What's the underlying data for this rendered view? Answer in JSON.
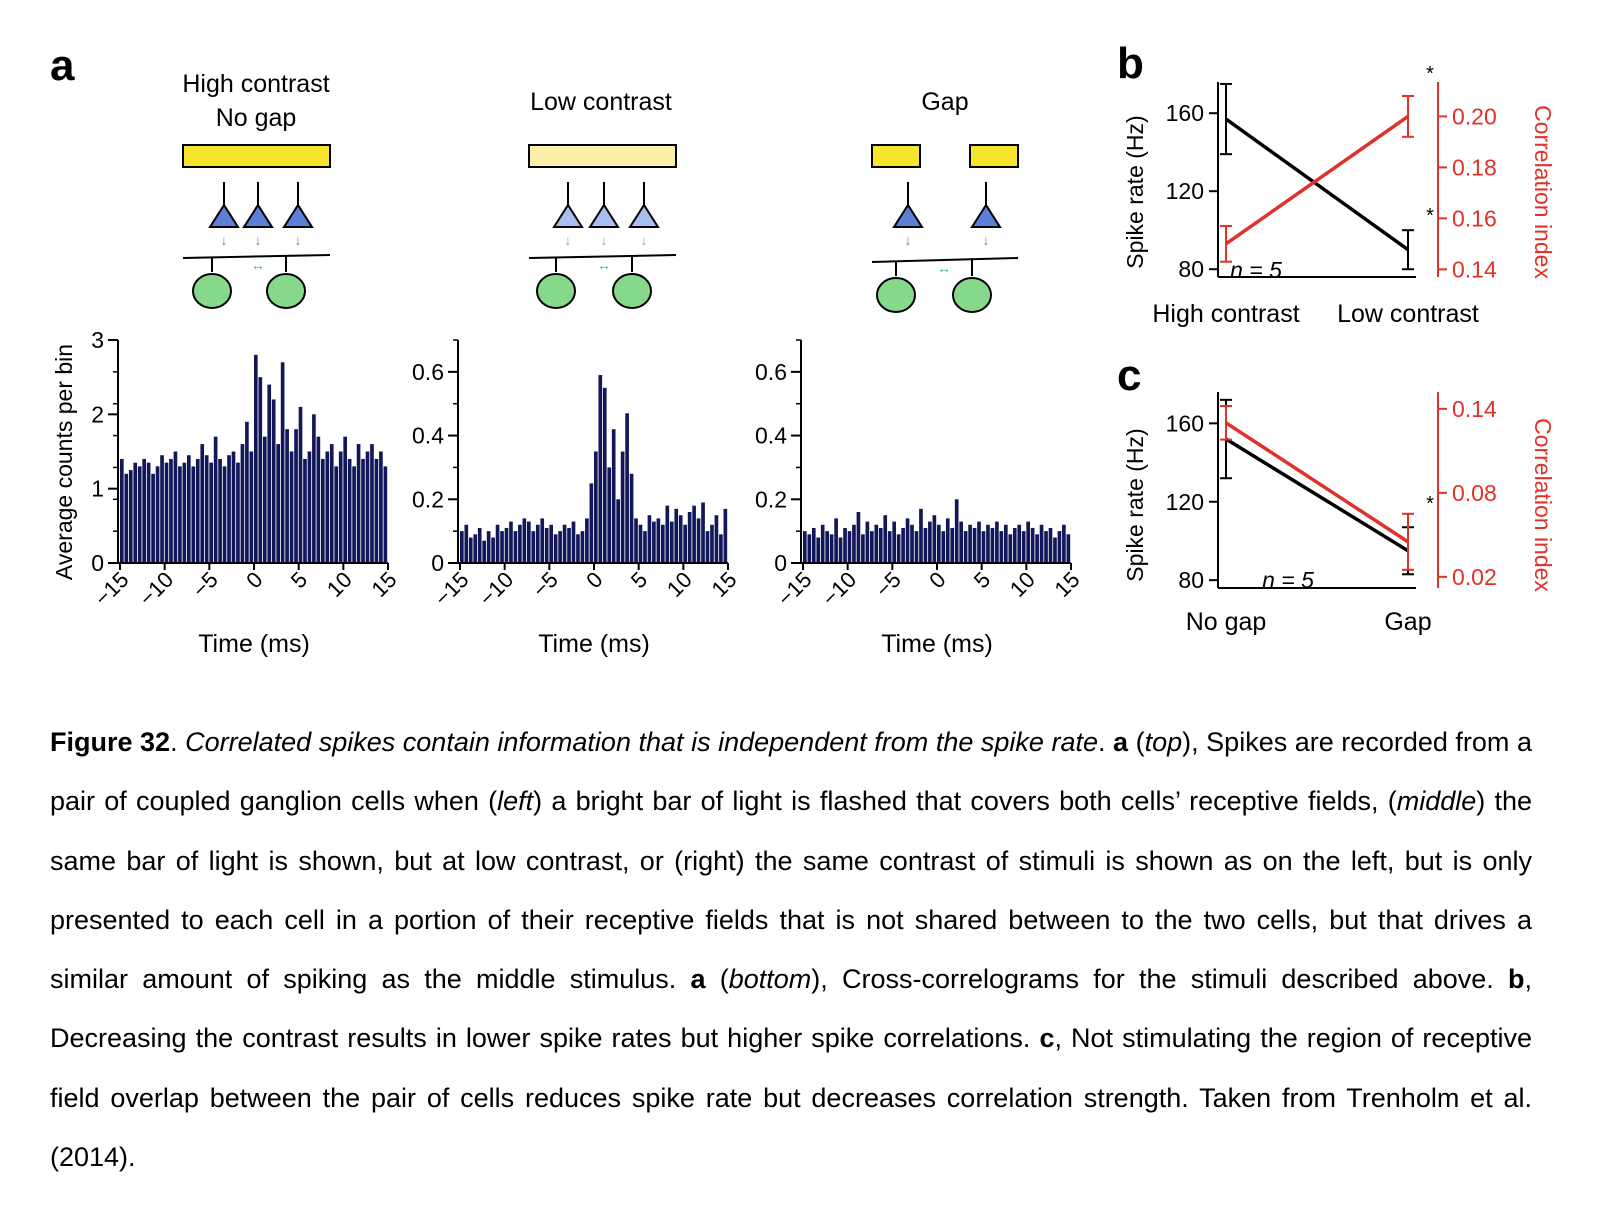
{
  "panel_a": {
    "label": "a",
    "stimuli": [
      {
        "title_line1": "High contrast",
        "title_line2": "No gap"
      },
      {
        "title_line1": "",
        "title_line2": "Low contrast"
      },
      {
        "title_line1": "",
        "title_line2": "Gap"
      }
    ],
    "ylabel": "Average counts per bin",
    "xlabel": "Time (ms)"
  },
  "panel_b": {
    "label": "b",
    "ylabel_left": "Spike rate (Hz)",
    "ylabel_right": "Correlation index",
    "n_text": "n = 5",
    "categories": [
      "High contrast",
      "Low contrast"
    ],
    "star": "*"
  },
  "panel_c": {
    "label": "c",
    "ylabel_left": "Spike rate (Hz)",
    "ylabel_right": "Correlation index",
    "n_text": "n = 5",
    "categories": [
      "No gap",
      "Gap"
    ],
    "star": "*"
  },
  "colors": {
    "bar": "#12175a",
    "yellow": "#f5e52e",
    "yellow_light": "#fbf0a8",
    "cell_green": "#86d98a",
    "triangle_blue": "#5b7fd6",
    "triangle_light": "#a8bdf0",
    "red": "#e0312a"
  },
  "chart_data": [
    {
      "type": "bar",
      "title": "High contrast No gap",
      "xlabel": "Time (ms)",
      "ylabel": "Average counts per bin",
      "x": [
        -15,
        -14.5,
        -14,
        -13.5,
        -13,
        -12.5,
        -12,
        -11.5,
        -11,
        -10.5,
        -10,
        -9.5,
        -9,
        -8.5,
        -8,
        -7.5,
        -7,
        -6.5,
        -6,
        -5.5,
        -5,
        -4.5,
        -4,
        -3.5,
        -3,
        -2.5,
        -2,
        -1.5,
        -1,
        -0.5,
        0,
        0.5,
        1,
        1.5,
        2,
        2.5,
        3,
        3.5,
        4,
        4.5,
        5,
        5.5,
        6,
        6.5,
        7,
        7.5,
        8,
        8.5,
        9,
        9.5,
        10,
        10.5,
        11,
        11.5,
        12,
        12.5,
        13,
        13.5,
        14,
        14.5
      ],
      "values": [
        1.4,
        1.2,
        1.25,
        1.35,
        1.3,
        1.4,
        1.35,
        1.2,
        1.3,
        1.45,
        1.35,
        1.4,
        1.5,
        1.3,
        1.35,
        1.45,
        1.3,
        1.4,
        1.6,
        1.45,
        1.35,
        1.7,
        1.4,
        1.3,
        1.45,
        1.5,
        1.35,
        1.6,
        1.9,
        1.5,
        2.8,
        2.5,
        1.7,
        2.4,
        2.2,
        1.6,
        2.7,
        1.8,
        1.5,
        1.8,
        2.1,
        1.4,
        1.5,
        2.0,
        1.7,
        1.4,
        1.5,
        1.6,
        1.3,
        1.5,
        1.7,
        1.4,
        1.3,
        1.6,
        1.4,
        1.5,
        1.6,
        1.4,
        1.5,
        1.3
      ],
      "xlim": [
        -15,
        15
      ],
      "ylim": [
        0,
        3
      ],
      "xticks": [
        "-15",
        "-10",
        "-5",
        "0",
        "5",
        "10",
        "15"
      ],
      "yticks": [
        "0",
        "1",
        "2",
        "3"
      ]
    },
    {
      "type": "bar",
      "title": "Low contrast",
      "xlabel": "Time (ms)",
      "x": [
        -15,
        -14.5,
        -14,
        -13.5,
        -13,
        -12.5,
        -12,
        -11.5,
        -11,
        -10.5,
        -10,
        -9.5,
        -9,
        -8.5,
        -8,
        -7.5,
        -7,
        -6.5,
        -6,
        -5.5,
        -5,
        -4.5,
        -4,
        -3.5,
        -3,
        -2.5,
        -2,
        -1.5,
        -1,
        -0.5,
        0,
        0.5,
        1,
        1.5,
        2,
        2.5,
        3,
        3.5,
        4,
        4.5,
        5,
        5.5,
        6,
        6.5,
        7,
        7.5,
        8,
        8.5,
        9,
        9.5,
        10,
        10.5,
        11,
        11.5,
        12,
        12.5,
        13,
        13.5,
        14,
        14.5
      ],
      "values": [
        0.1,
        0.12,
        0.08,
        0.09,
        0.11,
        0.07,
        0.1,
        0.08,
        0.12,
        0.1,
        0.11,
        0.13,
        0.1,
        0.12,
        0.14,
        0.13,
        0.1,
        0.12,
        0.14,
        0.11,
        0.12,
        0.09,
        0.1,
        0.12,
        0.11,
        0.13,
        0.09,
        0.1,
        0.14,
        0.25,
        0.35,
        0.59,
        0.55,
        0.3,
        0.42,
        0.2,
        0.35,
        0.47,
        0.28,
        0.14,
        0.12,
        0.1,
        0.15,
        0.13,
        0.14,
        0.12,
        0.18,
        0.13,
        0.17,
        0.15,
        0.12,
        0.16,
        0.18,
        0.14,
        0.19,
        0.1,
        0.12,
        0.15,
        0.09,
        0.17
      ],
      "xlim": [
        -15,
        15
      ],
      "ylim": [
        0,
        0.7
      ],
      "xticks": [
        "-15",
        "-10",
        "-5",
        "0",
        "5",
        "10",
        "15"
      ],
      "yticks": [
        "0",
        "0.2",
        "0.4",
        "0.6"
      ]
    },
    {
      "type": "bar",
      "title": "Gap",
      "xlabel": "Time (ms)",
      "x": [
        -15,
        -14.5,
        -14,
        -13.5,
        -13,
        -12.5,
        -12,
        -11.5,
        -11,
        -10.5,
        -10,
        -9.5,
        -9,
        -8.5,
        -8,
        -7.5,
        -7,
        -6.5,
        -6,
        -5.5,
        -5,
        -4.5,
        -4,
        -3.5,
        -3,
        -2.5,
        -2,
        -1.5,
        -1,
        -0.5,
        0,
        0.5,
        1,
        1.5,
        2,
        2.5,
        3,
        3.5,
        4,
        4.5,
        5,
        5.5,
        6,
        6.5,
        7,
        7.5,
        8,
        8.5,
        9,
        9.5,
        10,
        10.5,
        11,
        11.5,
        12,
        12.5,
        13,
        13.5,
        14,
        14.5
      ],
      "values": [
        0.1,
        0.09,
        0.11,
        0.08,
        0.12,
        0.1,
        0.09,
        0.14,
        0.08,
        0.11,
        0.1,
        0.12,
        0.16,
        0.09,
        0.13,
        0.1,
        0.12,
        0.11,
        0.15,
        0.1,
        0.13,
        0.09,
        0.11,
        0.14,
        0.12,
        0.1,
        0.17,
        0.11,
        0.13,
        0.15,
        0.12,
        0.1,
        0.14,
        0.11,
        0.2,
        0.13,
        0.1,
        0.12,
        0.11,
        0.13,
        0.1,
        0.12,
        0.11,
        0.13,
        0.1,
        0.12,
        0.09,
        0.11,
        0.12,
        0.1,
        0.13,
        0.11,
        0.09,
        0.12,
        0.1,
        0.11,
        0.08,
        0.1,
        0.12,
        0.09
      ],
      "xlim": [
        -15,
        15
      ],
      "ylim": [
        0,
        0.7
      ],
      "xticks": [
        "-15",
        "-10",
        "-5",
        "0",
        "5",
        "10",
        "15"
      ],
      "yticks": [
        "0",
        "0.2",
        "0.4",
        "0.6"
      ]
    },
    {
      "type": "line",
      "categories": [
        "High contrast",
        "Low contrast"
      ],
      "series": [
        {
          "values": [
            157,
            90
          ],
          "errors": [
            18,
            10
          ],
          "axis": "left",
          "color": "#000000"
        },
        {
          "values": [
            0.15,
            0.2
          ],
          "errors": [
            0.007,
            0.008
          ],
          "axis": "right",
          "color": "#e0312a"
        }
      ],
      "ylabel": "Spike rate (Hz)",
      "ylabel_right": "Correlation index",
      "ylim": [
        76,
        176
      ],
      "ylim_right": [
        0.137,
        0.2135
      ],
      "yticks": [
        "80",
        "120",
        "160"
      ],
      "yticks_right": [
        "0.14",
        "0.16",
        "0.18",
        "0.20"
      ]
    },
    {
      "type": "line",
      "categories": [
        "No gap",
        "Gap"
      ],
      "series": [
        {
          "values": [
            152,
            95
          ],
          "errors": [
            20,
            12
          ],
          "axis": "left",
          "color": "#000000"
        },
        {
          "values": [
            0.13,
            0.045
          ],
          "errors": [
            0.012,
            0.02
          ],
          "axis": "right",
          "color": "#e0312a"
        }
      ],
      "ylabel": "Spike rate (Hz)",
      "ylabel_right": "Correlation index",
      "ylim": [
        76,
        176
      ],
      "ylim_right": [
        0.012,
        0.152
      ],
      "yticks": [
        "80",
        "120",
        "160"
      ],
      "yticks_right": [
        "0.02",
        "0.08",
        "0.14"
      ]
    }
  ],
  "caption": {
    "fig_label": "Figure 32",
    "p1": ". ",
    "title_italic": "Correlated spikes contain information that is independent from the spike rate",
    "p2": ". ",
    "a1": "a",
    "p3": " (",
    "top": "top",
    "p4": "), Spikes are recorded from a pair of coupled ganglion cells when (",
    "left": "left",
    "p5": ") a bright bar of light is flashed that covers both cells’ receptive fields, (",
    "middle": "middle",
    "p6": ") the same bar of light is shown, but at low contrast, or (right) the same contrast of stimuli is shown as on the left, but is only presented to each cell in a portion of their receptive fields that is not shared between to the two cells, but that drives a similar amount of spiking as the middle stimulus. ",
    "a2": "a",
    "p7": " (",
    "bottom": "bottom",
    "p8": "), Cross-correlograms for the stimuli described above. ",
    "b": "b",
    "p9": ", Decreasing the contrast results in lower spike rates but higher spike correlations. ",
    "c": "c",
    "p10": ", Not stimulating the region of receptive field overlap between the pair of cells reduces spike rate but decreases correlation strength. Taken from Trenholm et al. (2014)."
  }
}
